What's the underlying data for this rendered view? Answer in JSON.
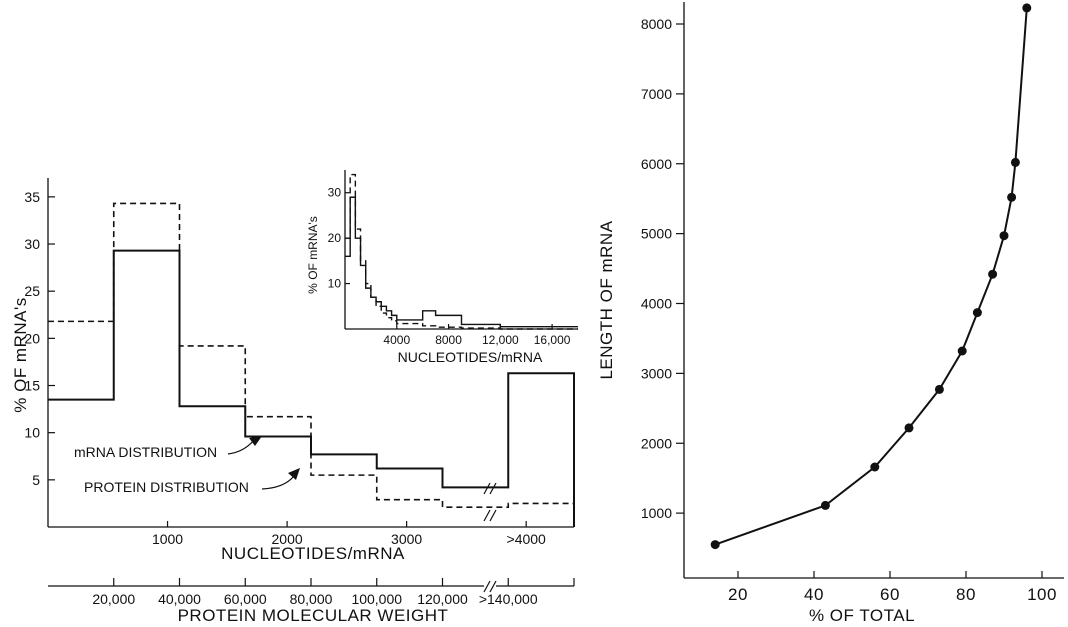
{
  "charts": {
    "left": {
      "type": "step",
      "ylabel": "% OF mRNA's",
      "xlabel": "NUCLEOTIDES/mRNA",
      "x_ticklabels": [
        "1000",
        "2000",
        "3000",
        ">4000"
      ],
      "y_ticklabels": [
        "5",
        "10",
        "15",
        "20",
        "25",
        "30",
        "35"
      ],
      "x2label": "PROTEIN MOLECULAR WEIGHT",
      "x2_ticklabels": [
        "20,000",
        "40,000",
        "60,000",
        "80,000",
        "100,000",
        "120,000",
        ">140,000"
      ],
      "annotations": {
        "mrna": "mRNA DISTRIBUTION",
        "protein": "PROTEIN DISTRIBUTION"
      }
    },
    "inset": {
      "ylabel": "% OF mRNA's",
      "xlabel": "NUCLEOTIDES/mRNA",
      "x_ticklabels": [
        "4000",
        "8000",
        "12,000",
        "16,000"
      ],
      "y_ticklabels": [
        "10",
        "20",
        "30"
      ]
    },
    "right": {
      "xlabel": "% OF TOTAL",
      "ylabel": "LENGTH OF mRNA",
      "x_ticklabels": [
        "20",
        "40",
        "60",
        "80",
        "100"
      ],
      "y_ticklabels": [
        "1000",
        "2000",
        "3000",
        "4000",
        "5000",
        "6000",
        "7000",
        "8000"
      ]
    }
  },
  "chart_data": [
    {
      "type": "bar",
      "xlim": [
        0,
        4400
      ],
      "ylim": [
        0,
        37
      ],
      "bin_edges": [
        0,
        550,
        1100,
        1650,
        2200,
        2750,
        3300,
        3850,
        4400
      ],
      "series": [
        {
          "name": "mRNA DISTRIBUTION",
          "style": "solid",
          "values": [
            13.5,
            29.3,
            12.8,
            9.6,
            7.7,
            6.2,
            4.2,
            16.3
          ]
        },
        {
          "name": "PROTEIN DISTRIBUTION",
          "style": "dashed",
          "values": [
            21.8,
            34.3,
            19.2,
            11.7,
            5.5,
            2.9,
            2.1,
            2.5
          ]
        }
      ]
    },
    {
      "type": "bar",
      "xlim": [
        0,
        18000
      ],
      "ylim": [
        0,
        35
      ],
      "bin_edges": [
        0,
        400,
        800,
        1200,
        1600,
        2000,
        2400,
        2800,
        3200,
        3600,
        4000,
        6000,
        7000,
        9000,
        12000,
        18000
      ],
      "series": [
        {
          "style": "solid",
          "values": [
            16,
            29,
            20,
            14,
            9,
            7,
            6,
            5,
            4,
            3,
            2,
            4,
            3,
            1,
            0.5
          ]
        },
        {
          "style": "dashed",
          "values": [
            20,
            34,
            22,
            15,
            10,
            7,
            5,
            3.5,
            2.5,
            1.8,
            1.2,
            0.7,
            0.4,
            0.2,
            0
          ]
        }
      ]
    },
    {
      "type": "line",
      "xlim": [
        0,
        100
      ],
      "ylim": [
        0,
        8300
      ],
      "x": [
        14,
        43,
        56,
        65,
        73,
        79,
        83,
        87,
        90,
        92,
        93,
        96
      ],
      "y": [
        550,
        1110,
        1660,
        2220,
        2770,
        3320,
        3870,
        4420,
        4970,
        5520,
        6020,
        8230
      ]
    }
  ]
}
